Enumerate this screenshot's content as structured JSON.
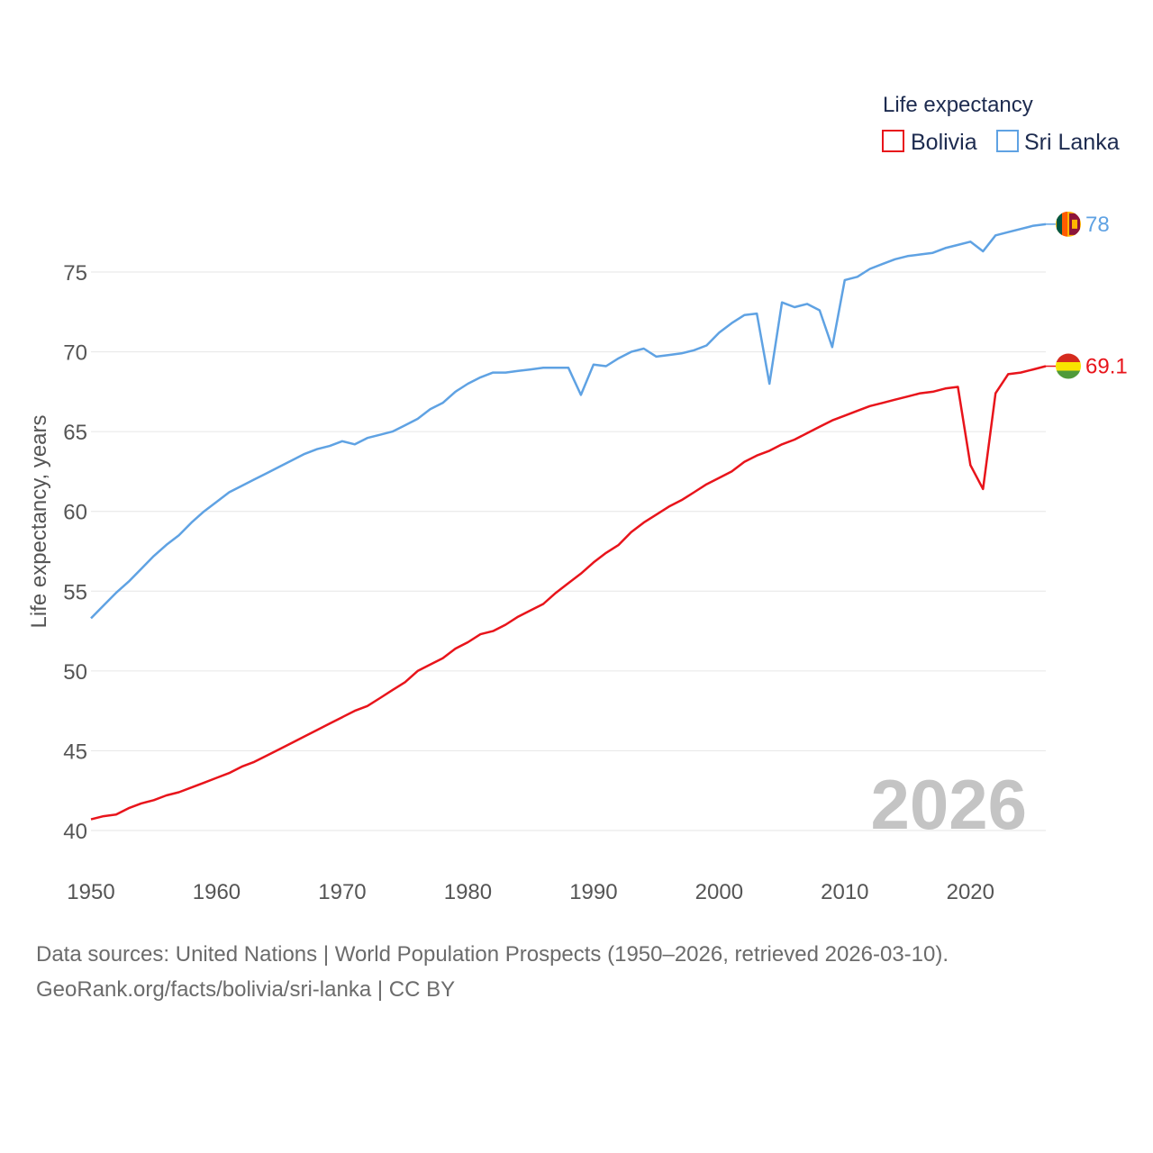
{
  "chart_data": {
    "type": "line",
    "title": "",
    "xlabel": "",
    "ylabel": "Life expectancy, years",
    "xlim": [
      1950,
      2026
    ],
    "ylim": [
      40,
      79
    ],
    "x_ticks": [
      1950,
      1960,
      1970,
      1980,
      1990,
      2000,
      2010,
      2020
    ],
    "y_ticks": [
      40,
      45,
      50,
      55,
      60,
      65,
      70,
      75
    ],
    "grid": true,
    "legend": {
      "title": "Life expectancy",
      "position": "top-right"
    },
    "year_watermark": "2026",
    "x": [
      1950,
      1951,
      1952,
      1953,
      1954,
      1955,
      1956,
      1957,
      1958,
      1959,
      1960,
      1961,
      1962,
      1963,
      1964,
      1965,
      1966,
      1967,
      1968,
      1969,
      1970,
      1971,
      1972,
      1973,
      1974,
      1975,
      1976,
      1977,
      1978,
      1979,
      1980,
      1981,
      1982,
      1983,
      1984,
      1985,
      1986,
      1987,
      1988,
      1989,
      1990,
      1991,
      1992,
      1993,
      1994,
      1995,
      1996,
      1997,
      1998,
      1999,
      2000,
      2001,
      2002,
      2003,
      2004,
      2005,
      2006,
      2007,
      2008,
      2009,
      2010,
      2011,
      2012,
      2013,
      2014,
      2015,
      2016,
      2017,
      2018,
      2019,
      2020,
      2021,
      2022,
      2023,
      2024,
      2025,
      2026
    ],
    "series": [
      {
        "name": "Bolivia",
        "color": "#e8141b",
        "end_label": "69.1",
        "flag": "bolivia-flag-icon",
        "values": [
          40.7,
          40.9,
          41.0,
          41.4,
          41.7,
          41.9,
          42.2,
          42.4,
          42.7,
          43.0,
          43.3,
          43.6,
          44.0,
          44.3,
          44.7,
          45.1,
          45.5,
          45.9,
          46.3,
          46.7,
          47.1,
          47.5,
          47.8,
          48.3,
          48.8,
          49.3,
          50.0,
          50.4,
          50.8,
          51.4,
          51.8,
          52.3,
          52.5,
          52.9,
          53.4,
          53.8,
          54.2,
          54.9,
          55.5,
          56.1,
          56.8,
          57.4,
          57.9,
          58.7,
          59.3,
          59.8,
          60.3,
          60.7,
          61.2,
          61.7,
          62.1,
          62.5,
          63.1,
          63.5,
          63.8,
          64.2,
          64.5,
          64.9,
          65.3,
          65.7,
          66.0,
          66.3,
          66.6,
          66.8,
          67.0,
          67.2,
          67.4,
          67.5,
          67.7,
          67.8,
          62.9,
          61.4,
          67.4,
          68.6,
          68.7,
          68.9,
          69.1
        ]
      },
      {
        "name": "Sri Lanka",
        "color": "#5fa2e3",
        "end_label": "78",
        "flag": "sri-lanka-flag-icon",
        "values": [
          53.3,
          54.1,
          54.9,
          55.6,
          56.4,
          57.2,
          57.9,
          58.5,
          59.3,
          60.0,
          60.6,
          61.2,
          61.6,
          62.0,
          62.4,
          62.8,
          63.2,
          63.6,
          63.9,
          64.1,
          64.4,
          64.2,
          64.6,
          64.8,
          65.0,
          65.4,
          65.8,
          66.4,
          66.8,
          67.5,
          68.0,
          68.4,
          68.7,
          68.7,
          68.8,
          68.9,
          69.0,
          69.0,
          69.0,
          67.3,
          69.2,
          69.1,
          69.6,
          70.0,
          70.2,
          69.7,
          69.8,
          69.9,
          70.1,
          70.4,
          71.2,
          71.8,
          72.3,
          72.4,
          68.0,
          73.1,
          72.8,
          73.0,
          72.6,
          70.3,
          74.5,
          74.7,
          75.2,
          75.5,
          75.8,
          76.0,
          76.1,
          76.2,
          76.5,
          76.7,
          76.9,
          76.3,
          77.3,
          77.5,
          77.7,
          77.9,
          78.0
        ]
      }
    ]
  },
  "footer": {
    "sources": "Data sources: United Nations | World Population Prospects (1950–2026, retrieved 2026-03-10).",
    "credit": "GeoRank.org/facts/bolivia/sri-lanka | CC BY"
  }
}
